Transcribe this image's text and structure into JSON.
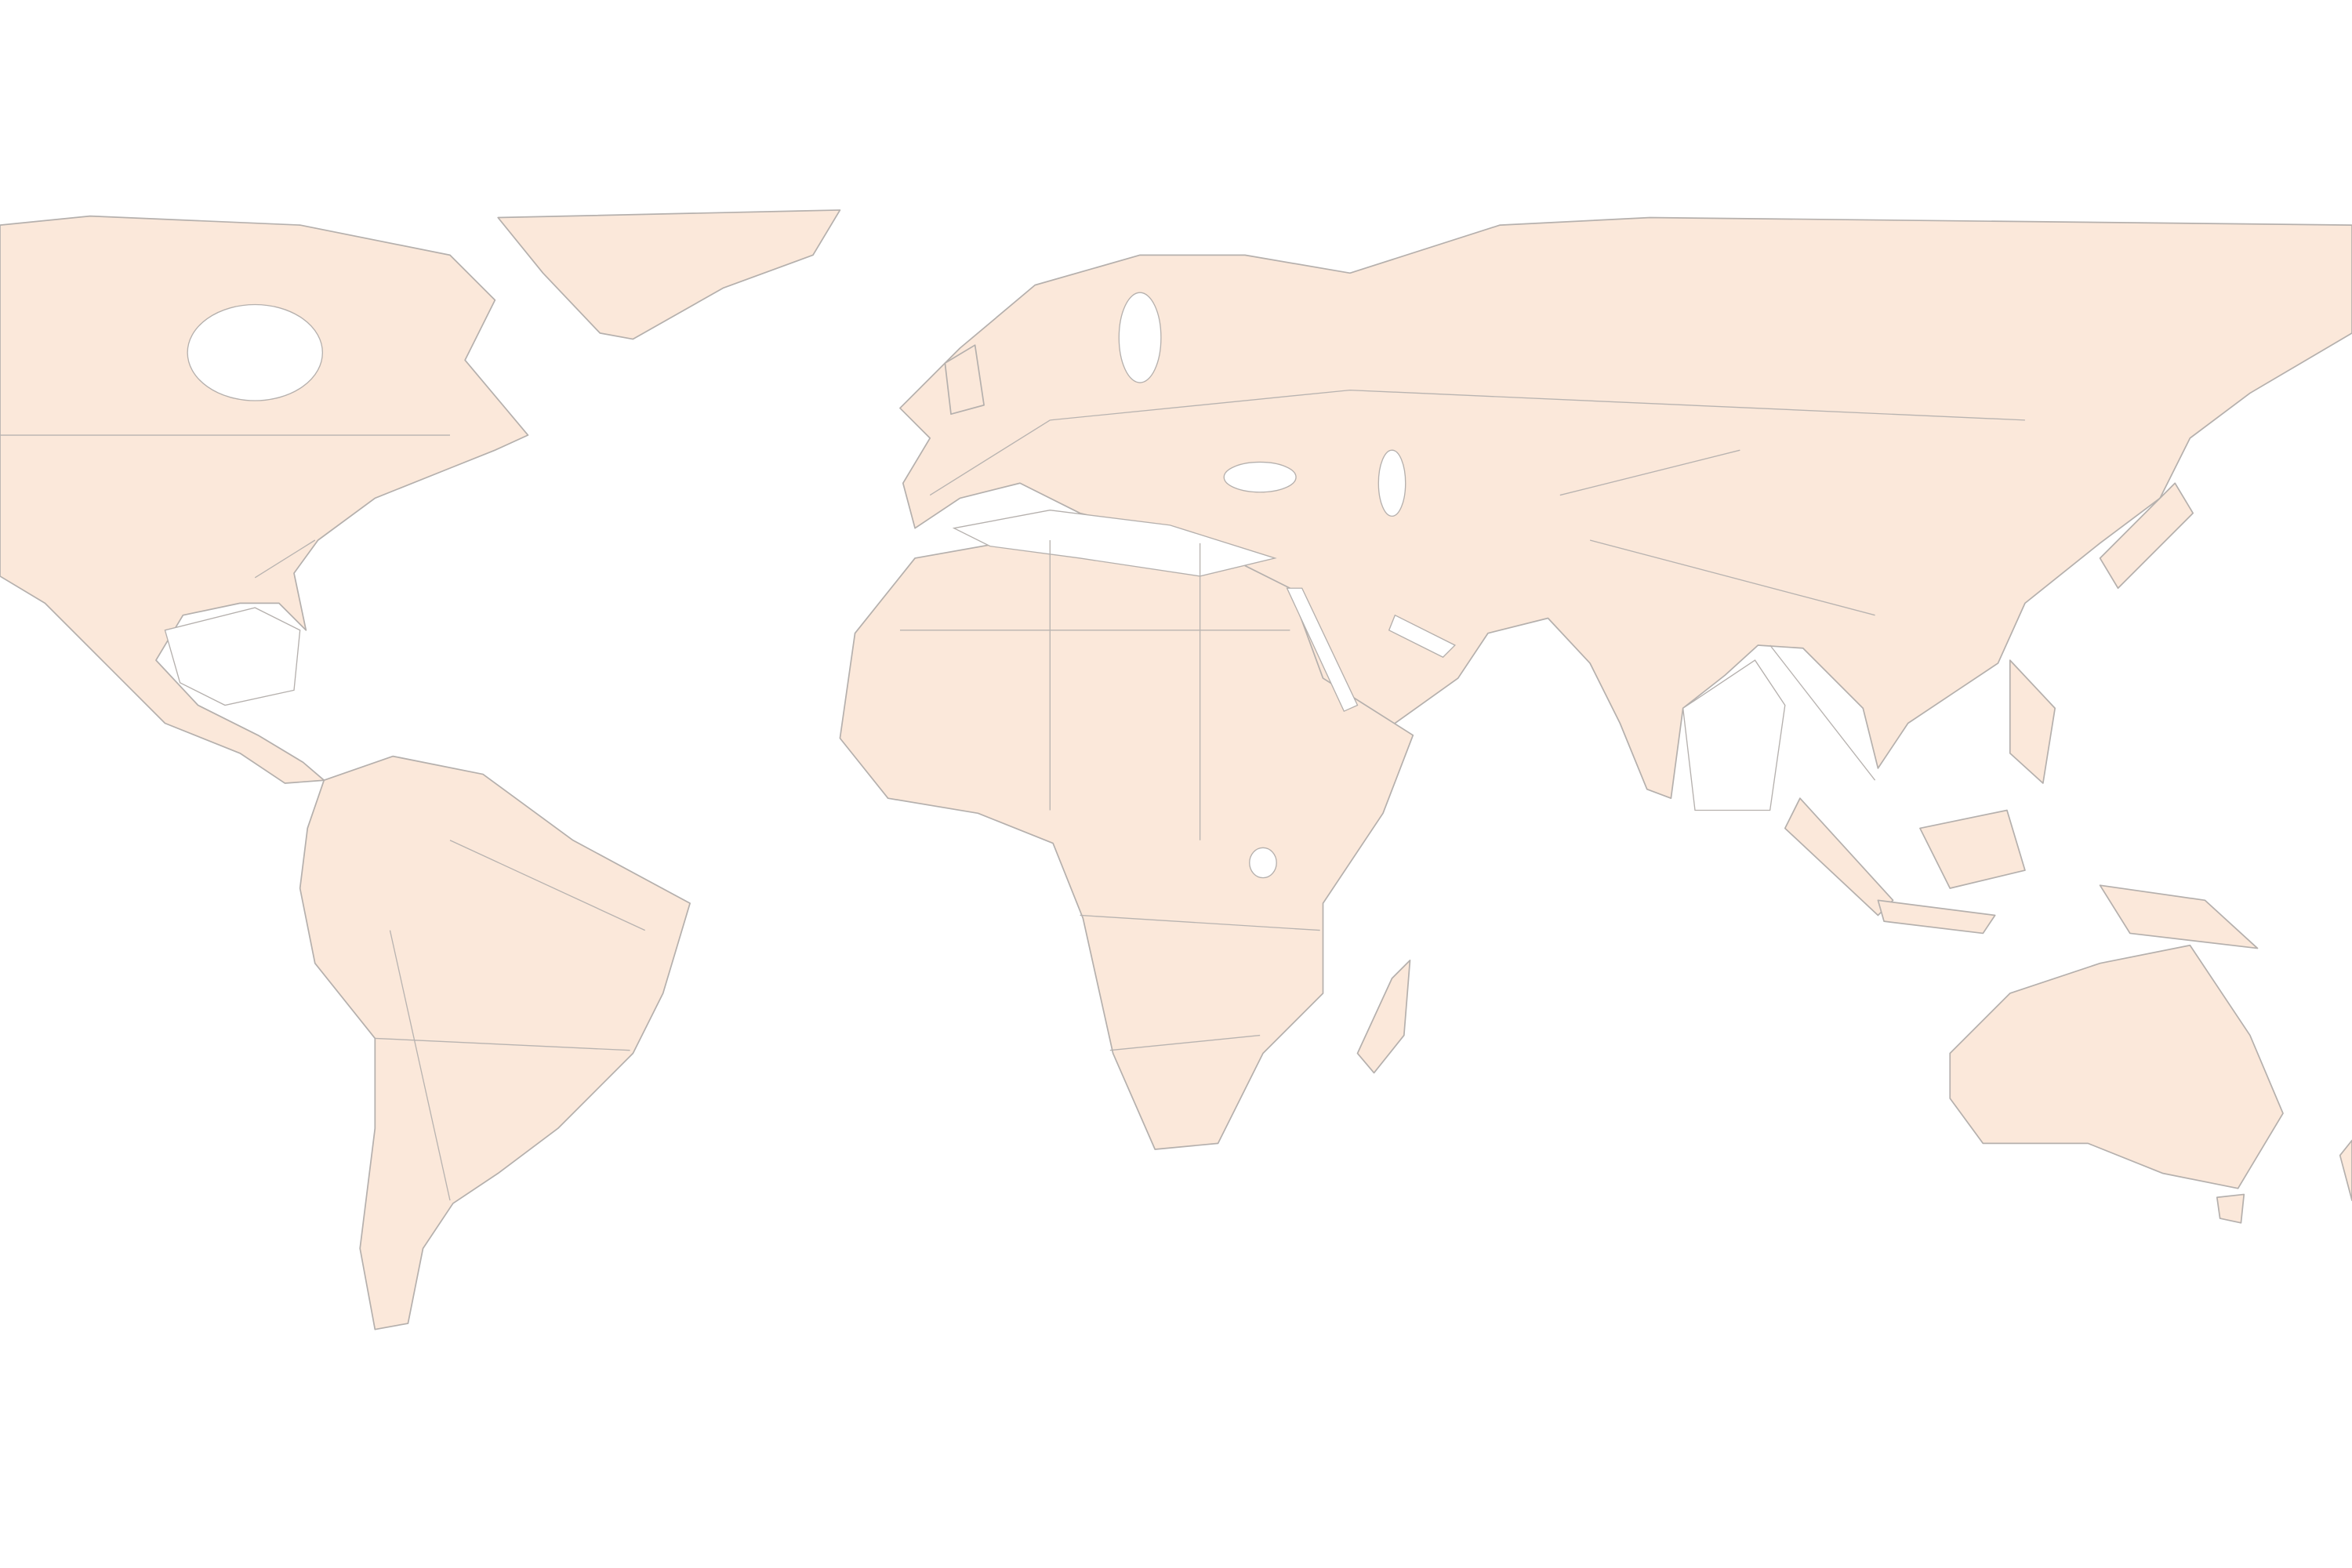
{
  "map": {
    "type": "choropleth-raster",
    "projection": "equirectangular",
    "extent": "global",
    "colors": {
      "background": "#ffffff",
      "land_base": "#fbe8da",
      "border": "#b5b0ad",
      "scale_low": "#f9c9a8",
      "scale_mid_low": "#f2875e",
      "scale_mid": "#d33f4a",
      "scale_mid_high": "#8e1c52",
      "scale_high": "#3a0c3c"
    }
  }
}
